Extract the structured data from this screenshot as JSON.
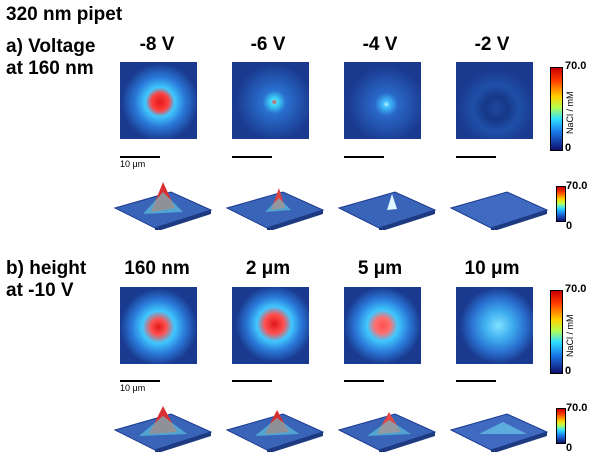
{
  "title": "320 nm pipet",
  "panel_a": {
    "label_line1": "a) Voltage",
    "label_line2": "at 160 nm",
    "columns": [
      "-8 V",
      "-6 V",
      "-4 V",
      "-2 V"
    ],
    "scale_label": "10 μm",
    "colorbar": {
      "max": "70.0",
      "min": "0",
      "unit": "NaCl / mM"
    },
    "colorbar_small": {
      "max": "70.0",
      "min": "0"
    }
  },
  "panel_b": {
    "label_line1": "b) height",
    "label_line2": "at -10 V",
    "columns": [
      "160 nm",
      "2 μm",
      "5 μm",
      "10 μm"
    ],
    "scale_label": "10 μm",
    "colorbar": {
      "max": "70.0",
      "min": "0",
      "unit": "NaCl / mM"
    },
    "colorbar_small": {
      "max": "70.0",
      "min": "0"
    }
  },
  "colors": {
    "background_map": "#1a3a8f",
    "hot": "#e02020",
    "warm": "#ffd000",
    "cool": "#30c8ff"
  }
}
